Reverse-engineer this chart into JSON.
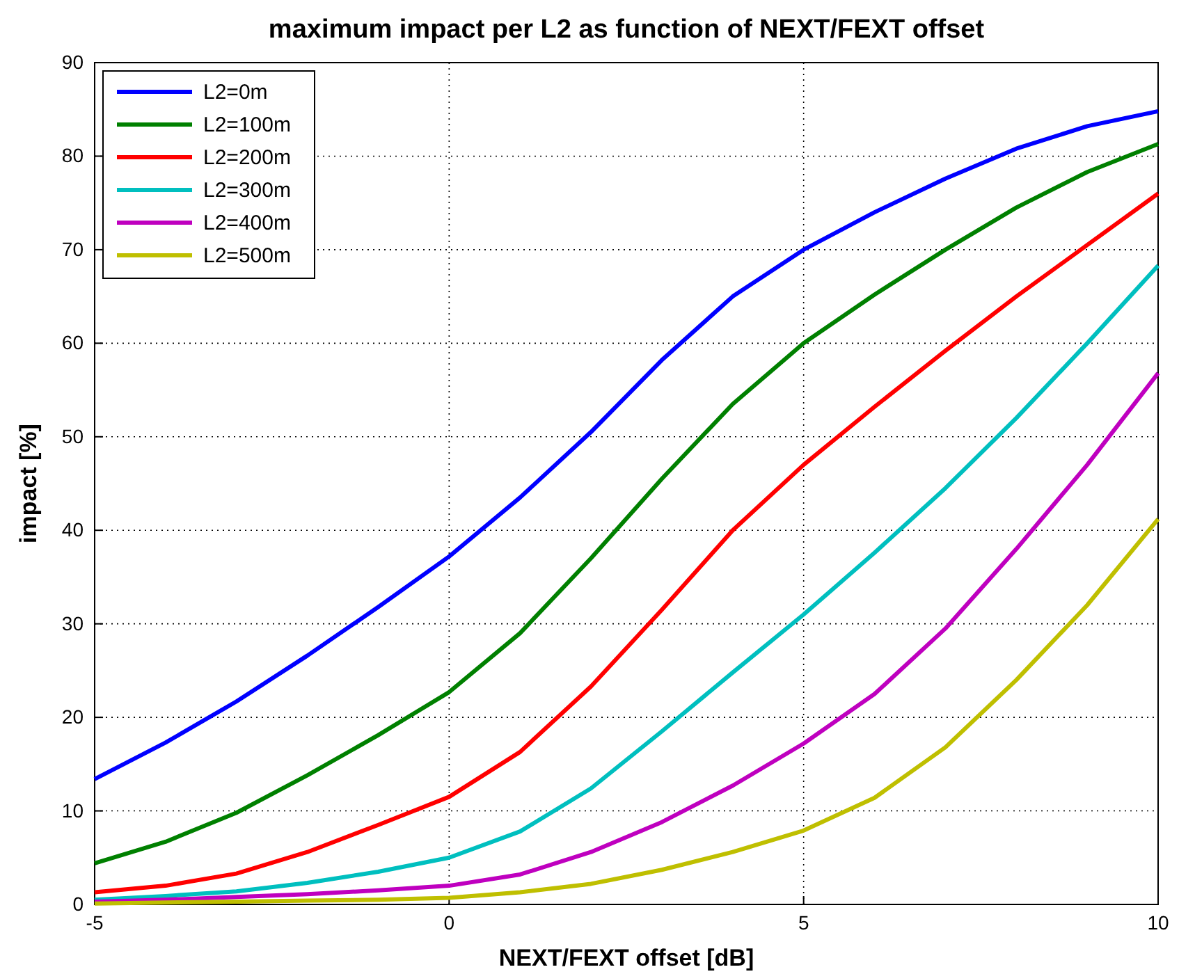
{
  "chart_data": {
    "type": "line",
    "title": "maximum impact per L2 as function of NEXT/FEXT offset",
    "xlabel": "NEXT/FEXT offset [dB]",
    "ylabel": "impact [%]",
    "x": [
      -5,
      -4,
      -3,
      -2,
      -1,
      0,
      1,
      2,
      3,
      4,
      5,
      6,
      7,
      8,
      9,
      10
    ],
    "series": [
      {
        "name": "L2=0m",
        "color": "#0000ff",
        "values": [
          13.4,
          17.3,
          21.7,
          26.6,
          31.8,
          37.2,
          43.5,
          50.5,
          58.2,
          65.0,
          70.0,
          74.0,
          77.6,
          80.8,
          83.2,
          84.8
        ]
      },
      {
        "name": "L2=100m",
        "color": "#008000",
        "values": [
          4.4,
          6.7,
          9.8,
          13.8,
          18.1,
          22.7,
          29.0,
          37.0,
          45.5,
          53.5,
          60.0,
          65.2,
          70.0,
          74.5,
          78.3,
          81.3
        ]
      },
      {
        "name": "L2=200m",
        "color": "#ff0000",
        "values": [
          1.3,
          2.0,
          3.3,
          5.6,
          8.5,
          11.5,
          16.3,
          23.3,
          31.5,
          40.0,
          47.0,
          53.2,
          59.2,
          65.0,
          70.5,
          76.0
        ]
      },
      {
        "name": "L2=300m",
        "color": "#00bfbf",
        "values": [
          0.5,
          0.9,
          1.4,
          2.3,
          3.5,
          5.0,
          7.8,
          12.4,
          18.5,
          24.8,
          31.0,
          37.6,
          44.5,
          52.0,
          60.0,
          68.3
        ]
      },
      {
        "name": "L2=400m",
        "color": "#bf00bf",
        "values": [
          0.3,
          0.5,
          0.8,
          1.1,
          1.5,
          2.0,
          3.2,
          5.6,
          8.8,
          12.7,
          17.2,
          22.5,
          29.5,
          38.0,
          47.0,
          56.8
        ]
      },
      {
        "name": "L2=500m",
        "color": "#bfbf00",
        "values": [
          0.1,
          0.2,
          0.3,
          0.4,
          0.5,
          0.7,
          1.3,
          2.2,
          3.7,
          5.6,
          7.9,
          11.4,
          16.8,
          24.0,
          32.0,
          41.2
        ]
      }
    ],
    "xlim": [
      -5,
      10
    ],
    "xticks": [
      -5,
      0,
      5,
      10
    ],
    "ylim": [
      0,
      90
    ],
    "yticks": [
      0,
      10,
      20,
      30,
      40,
      50,
      60,
      70,
      80,
      90
    ],
    "grid": true,
    "legend": "top left",
    "line_style": "solid"
  }
}
